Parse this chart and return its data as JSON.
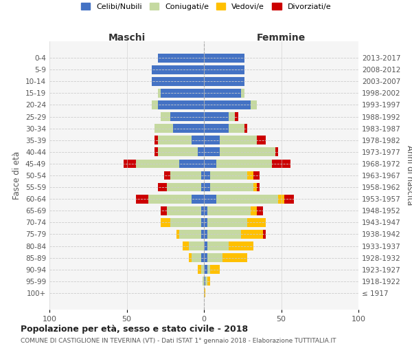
{
  "age_groups": [
    "100+",
    "95-99",
    "90-94",
    "85-89",
    "80-84",
    "75-79",
    "70-74",
    "65-69",
    "60-64",
    "55-59",
    "50-54",
    "45-49",
    "40-44",
    "35-39",
    "30-34",
    "25-29",
    "20-24",
    "15-19",
    "10-14",
    "5-9",
    "0-4"
  ],
  "birth_years": [
    "≤ 1917",
    "1918-1922",
    "1923-1927",
    "1928-1932",
    "1933-1937",
    "1938-1942",
    "1943-1947",
    "1948-1952",
    "1953-1957",
    "1958-1962",
    "1963-1967",
    "1968-1972",
    "1973-1977",
    "1978-1982",
    "1983-1987",
    "1988-1992",
    "1993-1997",
    "1998-2002",
    "2003-2007",
    "2008-2012",
    "2013-2017"
  ],
  "male_celibe": [
    0,
    0,
    0,
    2,
    0,
    2,
    2,
    2,
    8,
    2,
    2,
    16,
    4,
    8,
    20,
    22,
    30,
    28,
    34,
    34,
    30
  ],
  "male_coniugato": [
    0,
    1,
    2,
    6,
    10,
    14,
    20,
    22,
    28,
    22,
    20,
    28,
    26,
    22,
    12,
    6,
    4,
    2,
    0,
    0,
    0
  ],
  "male_vedovo": [
    0,
    0,
    2,
    2,
    4,
    2,
    6,
    0,
    0,
    0,
    0,
    0,
    0,
    0,
    0,
    0,
    0,
    0,
    0,
    0,
    0
  ],
  "male_divorziato": [
    0,
    0,
    0,
    0,
    0,
    0,
    0,
    4,
    8,
    6,
    4,
    8,
    2,
    2,
    0,
    0,
    0,
    0,
    0,
    0,
    0
  ],
  "female_celibe": [
    0,
    1,
    2,
    2,
    2,
    2,
    2,
    2,
    8,
    4,
    4,
    8,
    10,
    10,
    16,
    16,
    30,
    24,
    26,
    26,
    26
  ],
  "female_coniugata": [
    0,
    1,
    2,
    10,
    14,
    22,
    26,
    28,
    40,
    28,
    24,
    36,
    36,
    24,
    10,
    4,
    4,
    2,
    0,
    0,
    0
  ],
  "female_vedova": [
    1,
    2,
    6,
    16,
    16,
    14,
    12,
    4,
    4,
    2,
    4,
    0,
    0,
    0,
    0,
    0,
    0,
    0,
    0,
    0,
    0
  ],
  "female_divorziata": [
    0,
    0,
    0,
    0,
    0,
    2,
    0,
    4,
    6,
    2,
    4,
    12,
    2,
    6,
    2,
    2,
    0,
    0,
    0,
    0,
    0
  ],
  "color_celibe": "#4472c4",
  "color_coniugato": "#c5d9a0",
  "color_vedovo": "#ffc000",
  "color_divorziato": "#cc0000",
  "title": "Popolazione per età, sesso e stato civile - 2018",
  "subtitle": "COMUNE DI CASTIGLIONE IN TEVERINA (VT) - Dati ISTAT 1° gennaio 2018 - Elaborazione TUTTITALIA.IT",
  "xlabel_left": "Maschi",
  "xlabel_right": "Femmine",
  "ylabel_left": "Fasce di età",
  "ylabel_right": "Anni di nascita",
  "xlim": 100,
  "legend_labels": [
    "Celibi/Nubili",
    "Coniugati/e",
    "Vedovi/e",
    "Divorziati/e"
  ],
  "bg_color": "#ffffff",
  "grid_color": "#cccccc",
  "ax_label_color": "#555555"
}
